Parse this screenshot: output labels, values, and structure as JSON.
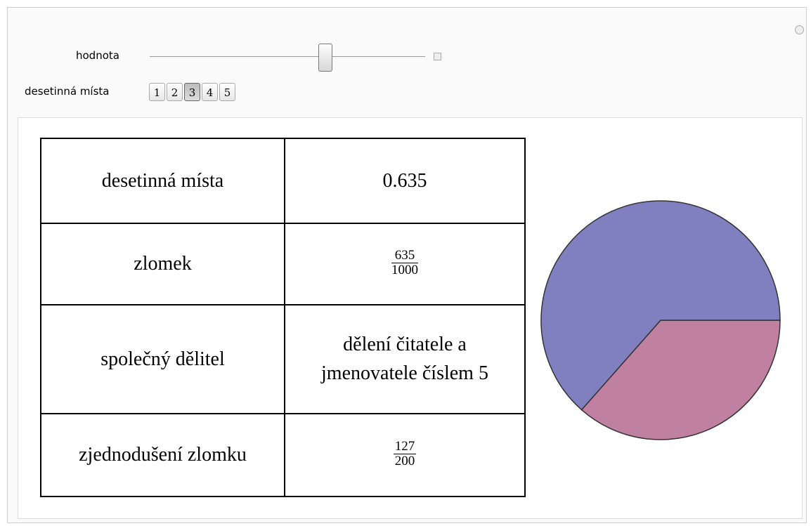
{
  "controls": {
    "slider": {
      "label": "hodnota",
      "value": 0.635
    },
    "setter": {
      "label": "desetinná místa",
      "options": [
        1,
        2,
        3,
        4,
        5
      ],
      "selected": 3
    }
  },
  "table": {
    "rows": [
      [
        "desetinná místa",
        "0.635"
      ],
      [
        "zlomek",
        {
          "numerator": 635,
          "denominator": 1000
        }
      ],
      [
        "společný dělitel",
        "dělení čitatele a jmenovatele číslem 5"
      ],
      [
        "zjednodušení zlomku",
        {
          "numerator": 127,
          "denominator": 200
        }
      ]
    ]
  },
  "chart_data": {
    "type": "pie",
    "values": [
      63.5,
      36.5
    ],
    "colors": [
      "#8080c0",
      "#c080a2"
    ]
  }
}
